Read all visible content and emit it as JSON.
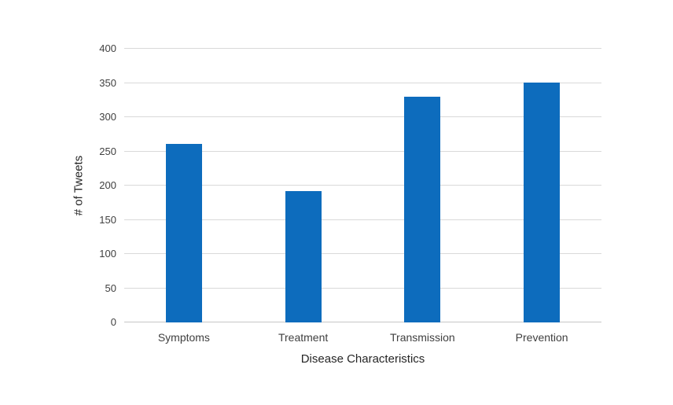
{
  "chart_data": {
    "type": "bar",
    "title": "",
    "categories": [
      "Symptoms",
      "Treatment",
      "Transmission",
      "Prevention"
    ],
    "values": [
      261,
      192,
      330,
      351
    ],
    "xlabel": "Disease Characteristics",
    "ylabel": "# of Tweets",
    "ylim": [
      0,
      400
    ],
    "ytick_step": 50,
    "grid": true,
    "legend": "none",
    "bar_color": "#0D6CBD",
    "gridline_color": "#D9D9D9",
    "axis_line_color": "#C6C6C6",
    "tick_text_color": "#404040",
    "axis_title_color": "#262626"
  }
}
